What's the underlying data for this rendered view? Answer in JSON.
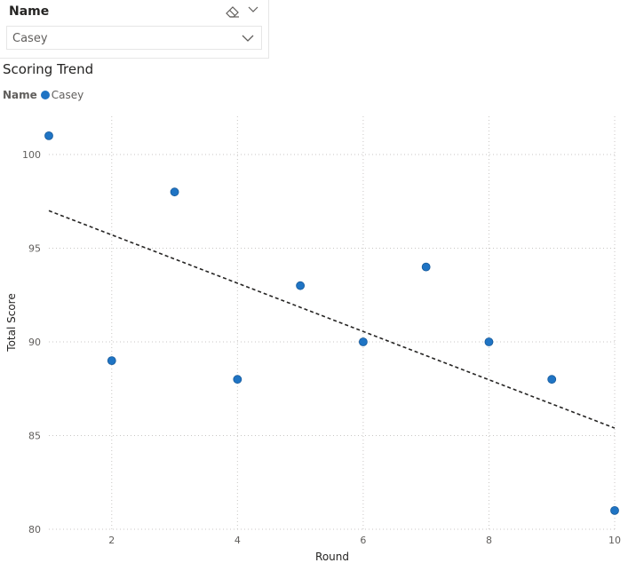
{
  "slicer": {
    "header": "Name",
    "selected_value": "Casey",
    "icons": {
      "clear": "eraser-icon",
      "expand": "chevron-down-icon",
      "dropdown": "chevron-down-icon"
    }
  },
  "chart_data": {
    "type": "scatter",
    "title": "Scoring Trend",
    "legend_title": "Name",
    "legend_position": "top-left",
    "xlabel": "Round",
    "ylabel": "Total Score",
    "xlim": [
      1,
      10
    ],
    "ylim": [
      80,
      102
    ],
    "x_ticks": [
      2,
      4,
      6,
      8,
      10
    ],
    "y_ticks": [
      80,
      85,
      90,
      95,
      100
    ],
    "grid": true,
    "series": [
      {
        "name": "Casey",
        "color": "#1f74c4",
        "x": [
          1,
          2,
          3,
          4,
          5,
          6,
          7,
          8,
          9,
          10
        ],
        "y": [
          101,
          89,
          98,
          88,
          93,
          90,
          94,
          90,
          88,
          81
        ]
      }
    ],
    "trend_line": {
      "x": [
        1,
        10
      ],
      "y": [
        97,
        85.4
      ],
      "style": "dashed",
      "color": "#252423"
    }
  }
}
